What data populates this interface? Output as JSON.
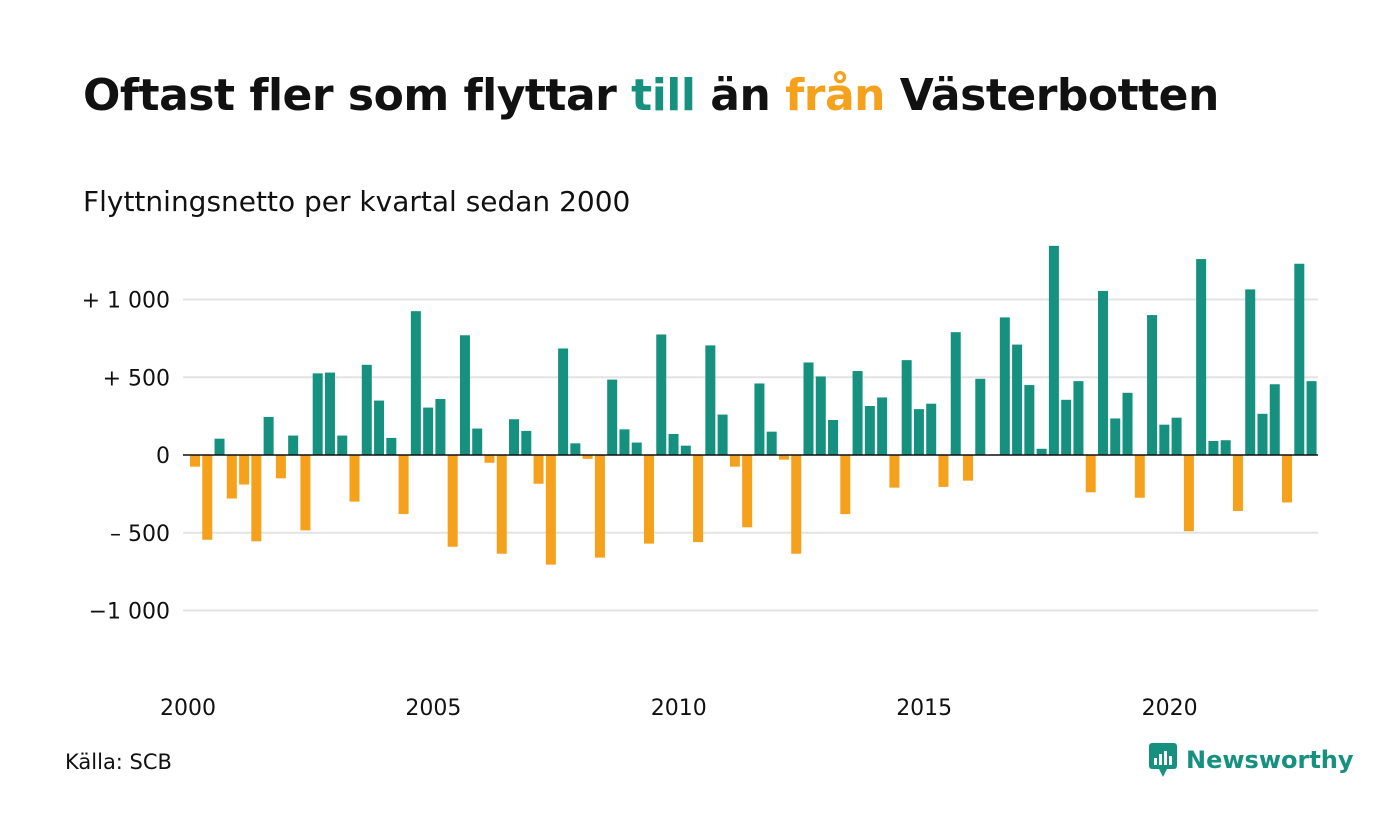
{
  "title": {
    "part1": "Oftast fler som flyttar ",
    "till": "till",
    "part2": " än ",
    "fran": "från",
    "part3": " Västerbotten"
  },
  "subtitle": "Flyttningsnetto per kvartal sedan 2000",
  "source": "Källa: SCB",
  "brand": "Newsworthy",
  "colors": {
    "positive": "#16917f",
    "negative": "#f5a11c",
    "grid": "#e3e3e3",
    "axis": "#111111"
  },
  "chart_data": {
    "type": "bar",
    "title": "Oftast fler som flyttar till än från Västerbotten",
    "subtitle": "Flyttningsnetto per kvartal sedan 2000",
    "xlabel": "",
    "ylabel": "",
    "ylim": [
      -1150,
      1400
    ],
    "grid": true,
    "yticks": [
      {
        "value": 1000,
        "label": "+ 1 000"
      },
      {
        "value": 500,
        "label": "+   500"
      },
      {
        "value": 0,
        "label": "0"
      },
      {
        "value": -500,
        "label": "–  500"
      },
      {
        "value": -1000,
        "label": "−1 000"
      }
    ],
    "xticks": [
      {
        "value": 2000,
        "label": "2000"
      },
      {
        "value": 2005,
        "label": "2005"
      },
      {
        "value": 2010,
        "label": "2010"
      },
      {
        "value": 2015,
        "label": "2015"
      },
      {
        "value": 2020,
        "label": "2020"
      }
    ],
    "start_year": 2000,
    "quarters_per_year": 4,
    "values": [
      -75,
      -545,
      105,
      -280,
      -190,
      -555,
      245,
      -150,
      125,
      -485,
      525,
      530,
      125,
      -300,
      580,
      350,
      110,
      -380,
      925,
      305,
      360,
      -590,
      770,
      170,
      -50,
      -635,
      230,
      155,
      -185,
      -705,
      685,
      75,
      -25,
      -660,
      485,
      165,
      80,
      -570,
      775,
      135,
      60,
      -560,
      705,
      260,
      -75,
      -465,
      460,
      150,
      -30,
      -635,
      595,
      505,
      225,
      -380,
      540,
      315,
      370,
      -210,
      610,
      295,
      330,
      -205,
      790,
      -165,
      490,
      0,
      885,
      710,
      450,
      40,
      1345,
      355,
      475,
      -240,
      1055,
      235,
      400,
      -275,
      900,
      195,
      240,
      -490,
      1260,
      90,
      95,
      -360,
      1065,
      265,
      455,
      -305,
      1230,
      475
    ]
  }
}
